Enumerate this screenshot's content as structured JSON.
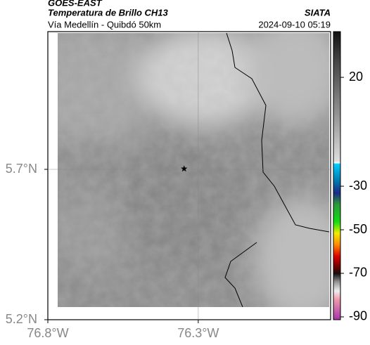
{
  "header": {
    "source": "GOES-EAST",
    "title": "Temperatura de Brillo CH13",
    "subtitle": "Vía Medellín - Quibdó 50km",
    "agency": "SIATA",
    "timestamp": "2024-09-10 05:19"
  },
  "map": {
    "xlim": [
      -76.8,
      -75.86
    ],
    "ylim": [
      5.2,
      6.158
    ],
    "xticks": [
      {
        "value": -76.8,
        "label": "76.8°W"
      },
      {
        "value": -76.3,
        "label": "76.3°W"
      }
    ],
    "yticks": [
      {
        "value": 5.2,
        "label": "5.2°N"
      },
      {
        "value": 5.7,
        "label": "5.7°N"
      }
    ],
    "grid": true,
    "marker": {
      "lon": -76.347,
      "lat": 5.702
    }
  },
  "colorbar": {
    "lim": [
      -91.3,
      41
    ],
    "ticks": [
      20,
      -30,
      -50,
      -70,
      -90
    ]
  }
}
